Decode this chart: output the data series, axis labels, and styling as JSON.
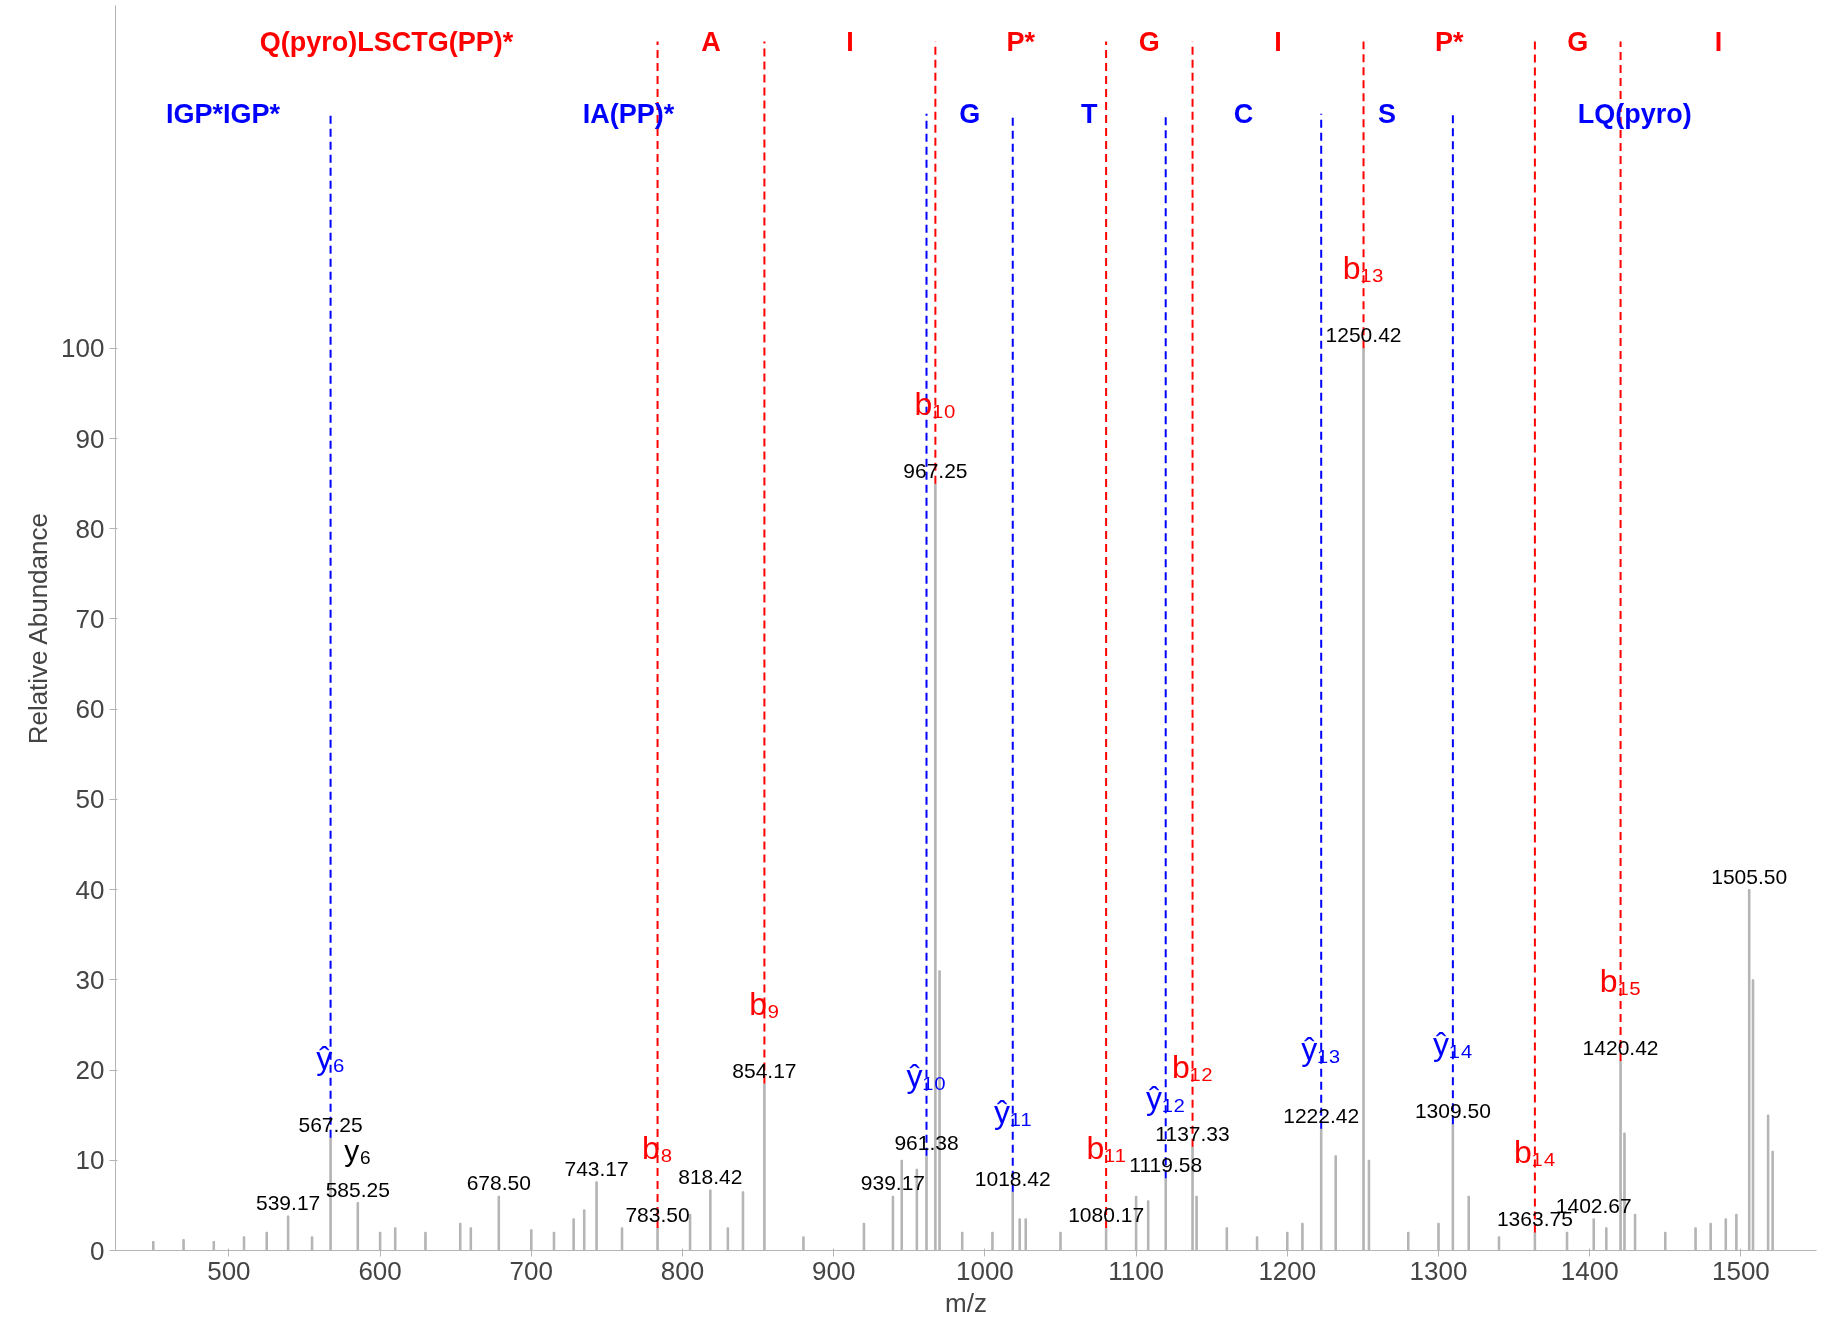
{
  "chart_data": {
    "type": "bar",
    "xlabel": "m/z",
    "ylabel": "Relative Abundance",
    "xlim": [
      425,
      1550
    ],
    "ylim": [
      0,
      138
    ],
    "xticks": [
      500,
      600,
      700,
      800,
      900,
      1000,
      1100,
      1200,
      1300,
      1400,
      1500
    ],
    "yticks": [
      0,
      10,
      20,
      30,
      40,
      50,
      60,
      70,
      80,
      90,
      100
    ],
    "grid": false,
    "series": [
      {
        "color": "#b4b4b4",
        "x": [
          450,
          470,
          490,
          510,
          525,
          539.17,
          555,
          567.25,
          585.25,
          600,
          610,
          630,
          653,
          660,
          678.5,
          700,
          715,
          728,
          735,
          743.17,
          760,
          783.5,
          805,
          818.42,
          830,
          840,
          854.17,
          880,
          920,
          939.17,
          945,
          955,
          961.38,
          967.25,
          970,
          985,
          1005,
          1018.42,
          1023,
          1027,
          1050,
          1080.17,
          1100,
          1108,
          1119.58,
          1137.33,
          1140,
          1160,
          1180,
          1200,
          1210,
          1222.42,
          1232,
          1250.42,
          1254,
          1280,
          1300,
          1309.5,
          1320,
          1340,
          1363.75,
          1385,
          1402.67,
          1411,
          1420.42,
          1423,
          1430,
          1450,
          1470,
          1480,
          1490,
          1497,
          1505.5,
          1508,
          1518,
          1521
        ],
        "values": [
          1,
          1.2,
          1,
          1.5,
          2,
          3.8,
          1.5,
          12.5,
          5.3,
          2,
          2.5,
          2,
          3,
          2.5,
          6,
          2.3,
          2,
          3.5,
          4.5,
          7.6,
          2.5,
          2.5,
          4,
          6.7,
          2.5,
          6.5,
          18.5,
          1.5,
          3,
          6,
          10,
          9,
          10.5,
          85,
          31,
          2,
          2,
          6.5,
          3.5,
          3.5,
          2,
          2.5,
          6,
          5.5,
          8,
          11.5,
          6,
          2.5,
          1.5,
          2,
          3,
          13.5,
          10.5,
          100,
          10,
          2,
          3,
          14,
          6,
          1.5,
          2,
          2,
          3.5,
          2.5,
          21,
          13,
          4,
          2,
          2.5,
          3,
          3.5,
          4,
          40,
          30,
          15,
          11
        ]
      }
    ],
    "ref_lines": [
      {
        "axis": "x",
        "value": 783.5,
        "label": "b₈",
        "color": "#ff0000",
        "line_style": "dashed"
      },
      {
        "axis": "x",
        "value": 854.17,
        "label": "b₉",
        "color": "#ff0000",
        "line_style": "dashed"
      },
      {
        "axis": "x",
        "value": 967.25,
        "label": "b₁₀",
        "color": "#ff0000",
        "line_style": "dashed"
      },
      {
        "axis": "x",
        "value": 1080.17,
        "label": "b₁₁",
        "color": "#ff0000",
        "line_style": "dashed"
      },
      {
        "axis": "x",
        "value": 1137.33,
        "label": "b₁₂",
        "color": "#ff0000",
        "line_style": "dashed"
      },
      {
        "axis": "x",
        "value": 1250.42,
        "label": "b₁₃",
        "color": "#ff0000",
        "line_style": "dashed"
      },
      {
        "axis": "x",
        "value": 1363.75,
        "label": "b₁₄",
        "color": "#ff0000",
        "line_style": "dashed"
      },
      {
        "axis": "x",
        "value": 1420.42,
        "label": "b₁₅",
        "color": "#ff0000",
        "line_style": "dashed"
      },
      {
        "axis": "x",
        "value": 567.25,
        "label": "ŷ₆",
        "color": "#0000ff",
        "line_style": "dashed"
      },
      {
        "axis": "x",
        "value": 961.38,
        "label": "ŷ₁₀",
        "color": "#0000ff",
        "line_style": "dashed"
      },
      {
        "axis": "x",
        "value": 1018.42,
        "label": "ŷ₁₁",
        "color": "#0000ff",
        "line_style": "dashed"
      },
      {
        "axis": "x",
        "value": 1119.58,
        "label": "ŷ₁₂",
        "color": "#0000ff",
        "line_style": "dashed"
      },
      {
        "axis": "x",
        "value": 1222.42,
        "label": "ŷ₁₃",
        "color": "#0000ff",
        "line_style": "dashed"
      },
      {
        "axis": "x",
        "value": 1309.5,
        "label": "ŷ₁₄",
        "color": "#0000ff",
        "line_style": "dashed"
      }
    ],
    "annotations": [
      "Q(pyro)LSCTG(PP)*",
      "A",
      "I",
      "P*",
      "G",
      "I",
      "P*",
      "G",
      "I",
      "IGP*IGP*",
      "IA(PP)*",
      "G",
      "T",
      "C",
      "S",
      "LQ(pyro)",
      {
        "text": "539.17",
        "x": 539.17,
        "y": 3.8
      },
      {
        "text": "567.25",
        "x": 567.25,
        "y": 12.5
      },
      {
        "text": "585.25",
        "x": 585.25,
        "y": 5.3
      },
      {
        "text": "y₆",
        "x": 585.25,
        "y": 5.3
      },
      {
        "text": "678.50",
        "x": 678.5,
        "y": 6
      },
      {
        "text": "743.17",
        "x": 743.17,
        "y": 7.6
      },
      {
        "text": "783.50",
        "x": 783.5,
        "y": 2.5
      },
      {
        "text": "818.42",
        "x": 818.42,
        "y": 6.7
      },
      {
        "text": "854.17",
        "x": 854.17,
        "y": 18.5
      },
      {
        "text": "939.17",
        "x": 939.17,
        "y": 6
      },
      {
        "text": "961.38",
        "x": 961.38,
        "y": 10.5
      },
      {
        "text": "967.25",
        "x": 967.25,
        "y": 85
      },
      {
        "text": "1018.42",
        "x": 1018.42,
        "y": 6.5
      },
      {
        "text": "1080.17",
        "x": 1080.17,
        "y": 2.5
      },
      {
        "text": "1119.58",
        "x": 1119.58,
        "y": 8
      },
      {
        "text": "1137.33",
        "x": 1137.33,
        "y": 11.5
      },
      {
        "text": "1222.42",
        "x": 1222.42,
        "y": 13.5
      },
      {
        "text": "1250.42",
        "x": 1250.42,
        "y": 100
      },
      {
        "text": "1309.50",
        "x": 1309.5,
        "y": 14
      },
      {
        "text": "1363.75",
        "x": 1363.75,
        "y": 2
      },
      {
        "text": "1402.67",
        "x": 1402.67,
        "y": 3.5
      },
      {
        "text": "1420.42",
        "x": 1420.42,
        "y": 21
      },
      {
        "text": "1505.50",
        "x": 1505.5,
        "y": 40
      }
    ]
  }
}
